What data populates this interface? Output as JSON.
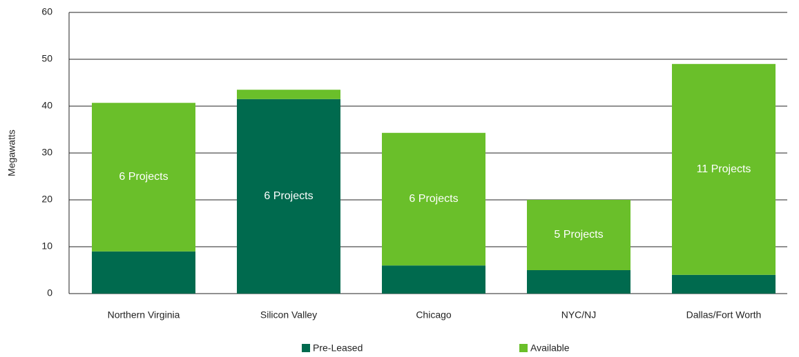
{
  "chart_data": {
    "type": "stacked_bar",
    "ylabel": "Megawatts",
    "categories": [
      "Northern Virginia",
      "Silicon Valley",
      "Chicago",
      "NYC/NJ",
      "Dallas/Fort Worth"
    ],
    "series": [
      {
        "name": "Pre-Leased",
        "color": "#006a4e",
        "values": [
          9,
          41.5,
          6,
          5,
          4
        ]
      },
      {
        "name": "Available",
        "color": "#6abf2a",
        "values": [
          31.7,
          2,
          28.3,
          15,
          45
        ]
      }
    ],
    "annotations": [
      "6 Projects",
      "6 Projects",
      "6 Projects",
      "5 Projects",
      "11 Projects"
    ],
    "ylim": [
      0,
      60
    ],
    "yticks": [
      0,
      10,
      20,
      30,
      40,
      50,
      60
    ],
    "grid": true,
    "legend": "bottom"
  }
}
